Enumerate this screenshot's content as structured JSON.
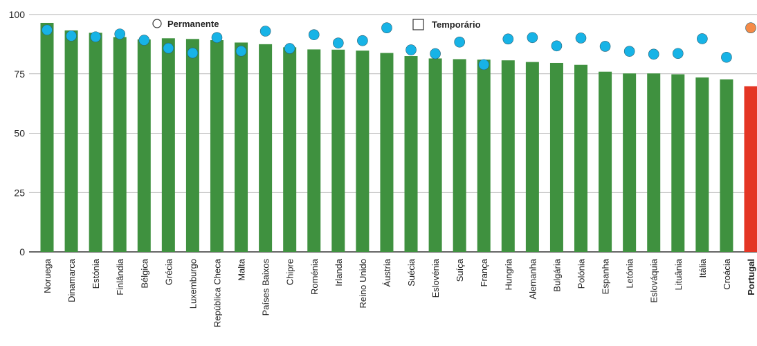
{
  "chart_data": {
    "type": "bar",
    "ylim": [
      0,
      100
    ],
    "yticks": [
      "0",
      "25",
      "50",
      "75",
      "100"
    ],
    "legend": {
      "permanente_label": "Permanente",
      "temporario_label": "Temporário",
      "placement": "top"
    },
    "categories": [
      "Noruega",
      "Dinamarca",
      "Estónia",
      "Finlândia",
      "Bélgica",
      "Grécia",
      "Luxemburgo",
      "República Checa",
      "Malta",
      "Países Baixos",
      "Chipre",
      "Roménia",
      "Irlanda",
      "Reino Unido",
      "Áustria",
      "Suécia",
      "Eslovénia",
      "Suíça",
      "França",
      "Hungria",
      "Alemanha",
      "Bulgária",
      "Polónia",
      "Espanha",
      "Letónia",
      "Eslováquia",
      "Lituânia",
      "Itália",
      "Croácia",
      "Portugal"
    ],
    "highlight_category": "Portugal",
    "series": [
      {
        "name": "Permanente",
        "kind": "bar",
        "values": [
          96.5,
          93.3,
          92.3,
          90.5,
          89.5,
          90,
          89.7,
          89.2,
          88.2,
          87.5,
          86.2,
          85.3,
          85.2,
          84.8,
          83.8,
          82.5,
          81.5,
          81.2,
          81,
          80.7,
          80,
          79.6,
          78.8,
          75.9,
          75.2,
          75.2,
          74.8,
          73.5,
          72.7,
          69.8
        ]
      },
      {
        "name": "Temporário",
        "kind": "dot",
        "values": [
          93.5,
          91,
          90.6,
          91.8,
          89.2,
          85.8,
          83.8,
          90.3,
          84.6,
          93,
          85.7,
          91.5,
          88,
          89,
          94.4,
          85.1,
          83.5,
          88.4,
          78.9,
          89.7,
          90.3,
          86.8,
          90.1,
          86.6,
          84.5,
          83.3,
          83.6,
          89.8,
          82,
          94.4
        ]
      }
    ],
    "colors": {
      "bar": "#3f913f",
      "bar_highlight": "#e43524",
      "dot": "#17b3e6",
      "dot_highlight": "#f58a46",
      "grid": "#999999",
      "axis": "#333333"
    },
    "grid": true
  }
}
